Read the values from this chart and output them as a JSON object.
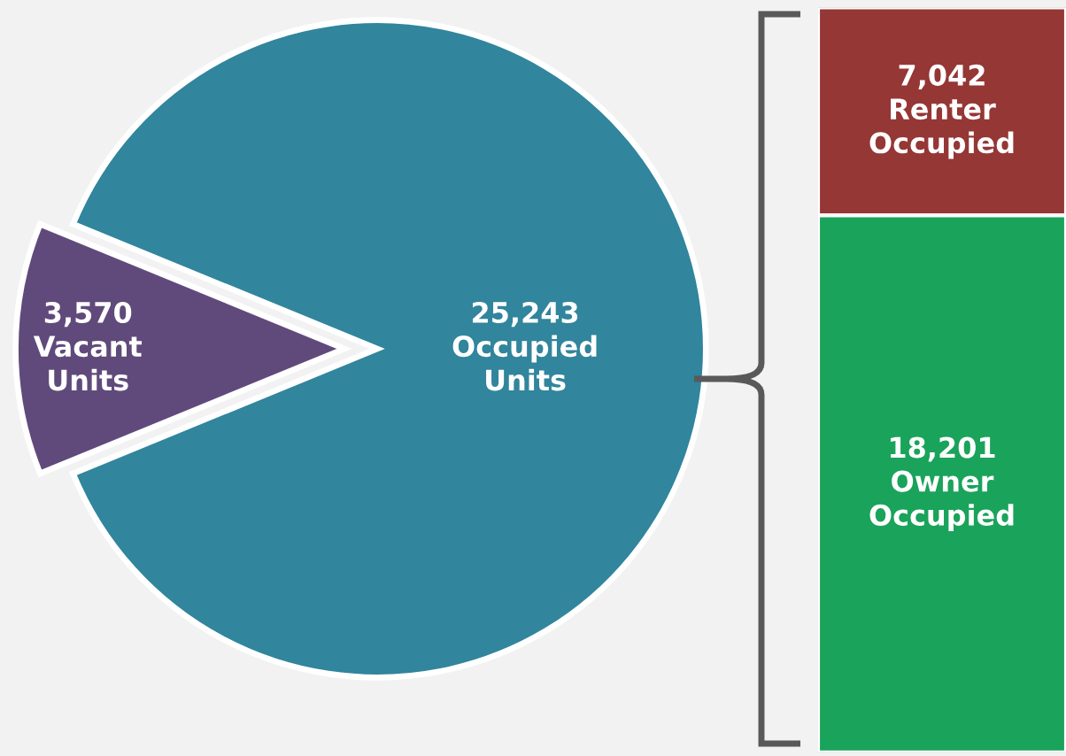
{
  "chart_data": [
    {
      "type": "pie",
      "categories": [
        "Occupied\nUnits",
        "Vacant\nUnits"
      ],
      "values": [
        25243,
        3570
      ],
      "value_labels": [
        "25,243",
        "3,570"
      ],
      "colors": [
        "#31859c",
        "#604a7b"
      ],
      "data_labels": true,
      "legend": false
    },
    {
      "type": "bar",
      "stacked": true,
      "categories": [
        null
      ],
      "legend": false,
      "data_labels": true,
      "series": [
        {
          "name": "Owner\nOccupied",
          "color": "#1aa35a",
          "values": [
            18201
          ],
          "value_labels": [
            "18,201"
          ]
        },
        {
          "name": "Renter\nOccupied",
          "color": "#953735",
          "values": [
            7042
          ],
          "value_labels": [
            "7,042"
          ]
        }
      ]
    }
  ]
}
